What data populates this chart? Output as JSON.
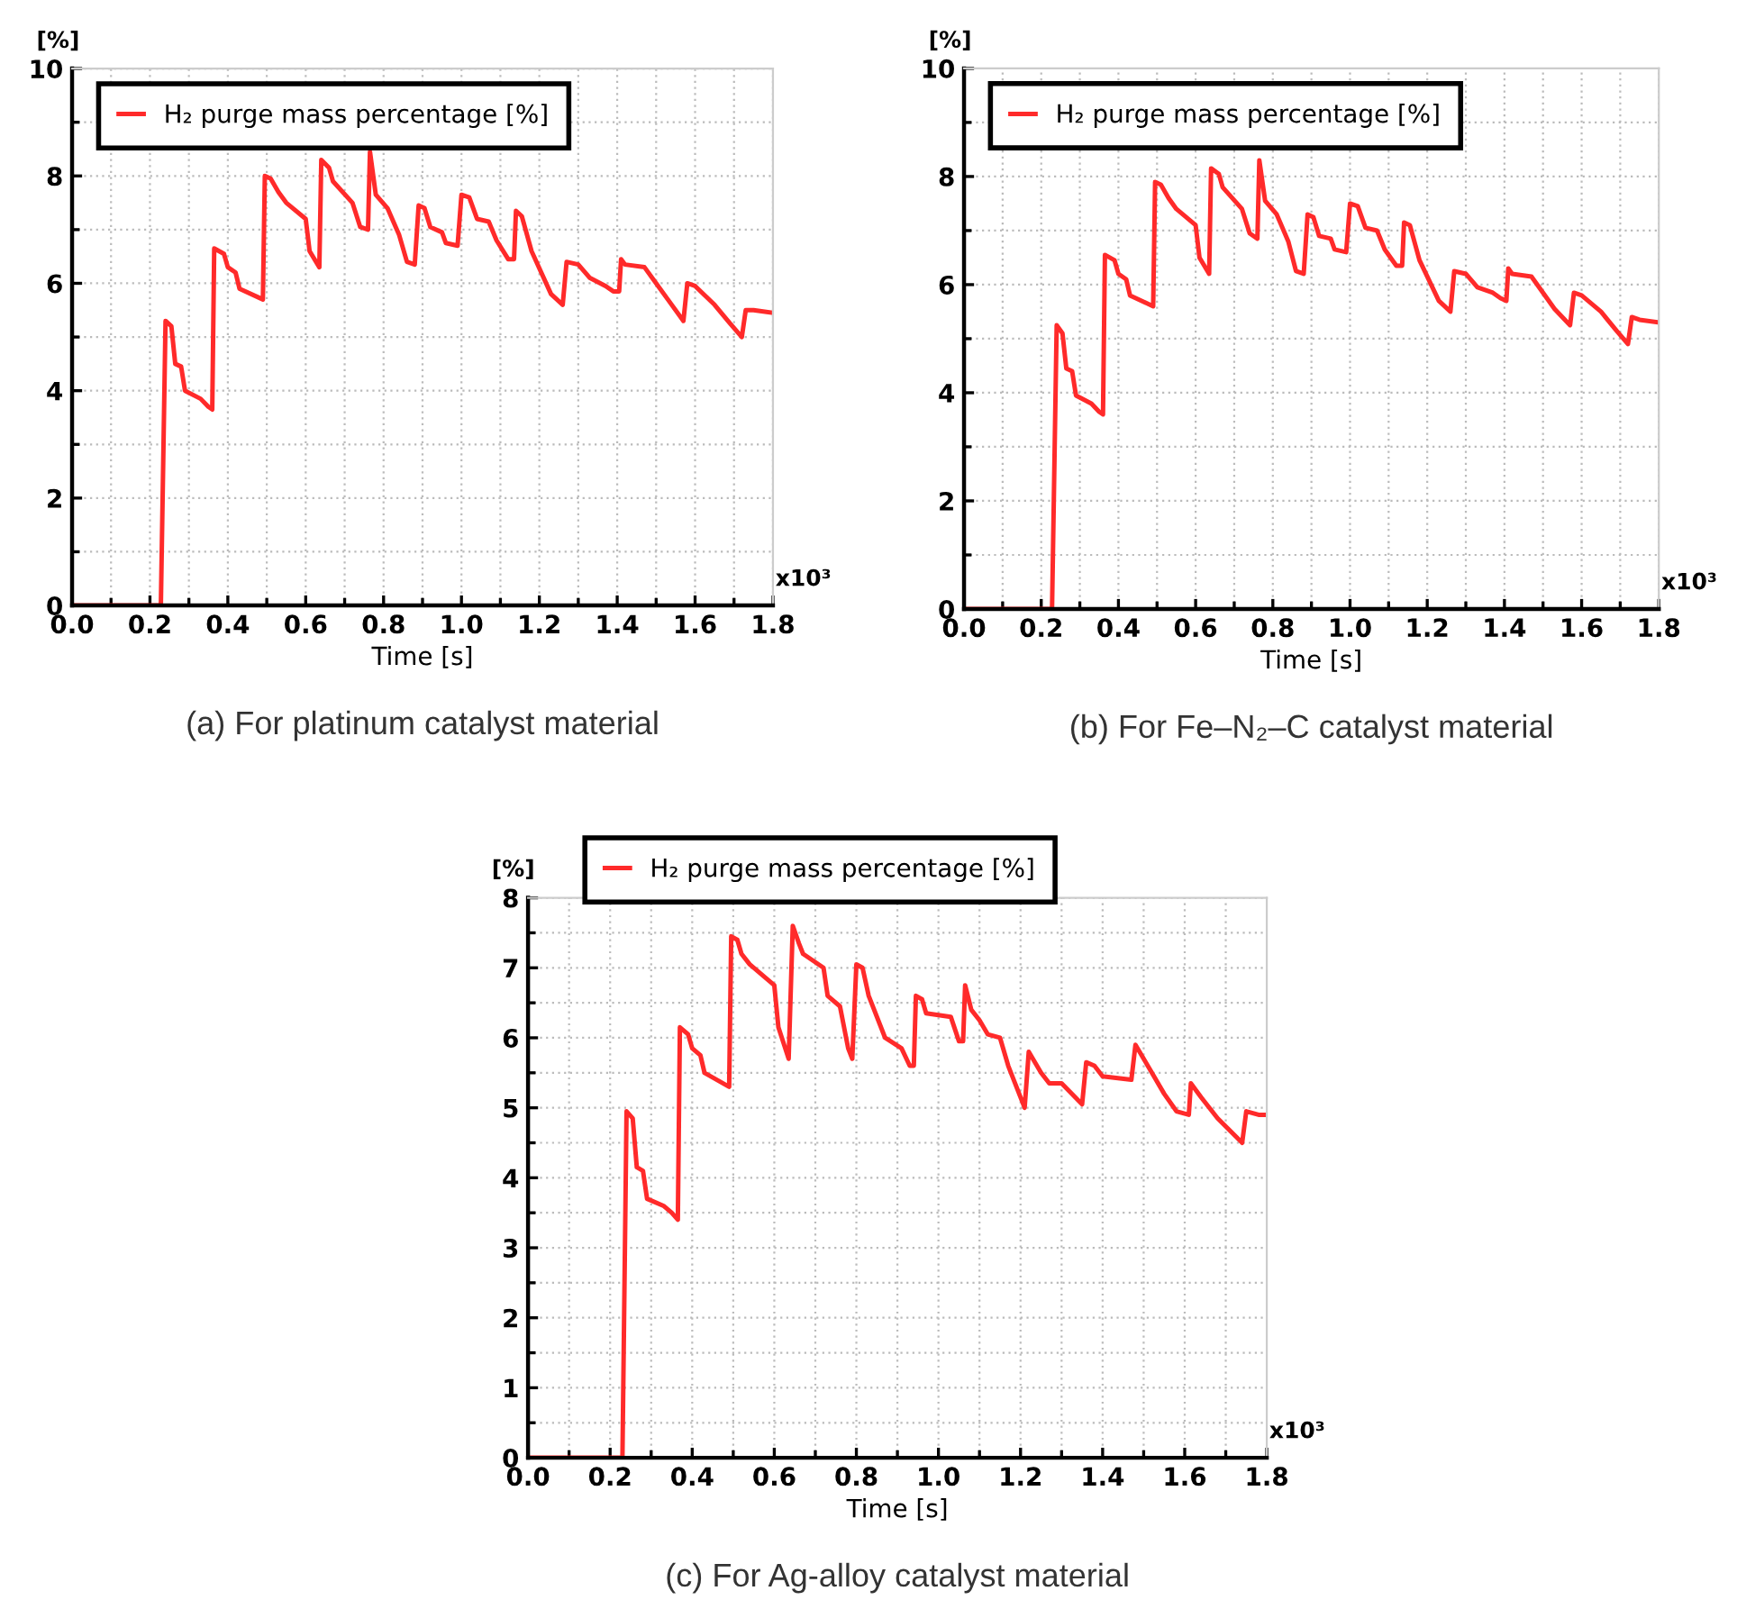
{
  "chart_data": [
    {
      "type": "line",
      "xlabel": "Time [s]",
      "ylabel": "[%]",
      "xlim": [
        0,
        1.8
      ],
      "xticks": [
        {
          "value": 0,
          "label": "0.0"
        },
        {
          "value": 0.2,
          "label": "0.2"
        },
        {
          "value": 0.4,
          "label": "0.4"
        },
        {
          "value": 0.6,
          "label": "0.6"
        },
        {
          "value": 0.8,
          "label": "0.8"
        },
        {
          "value": 1.0,
          "label": "1.0"
        },
        {
          "value": 1.2,
          "label": "1.2"
        },
        {
          "value": 1.4,
          "label": "1.4"
        },
        {
          "value": 1.6,
          "label": "1.6"
        },
        {
          "value": 1.8,
          "label": "1.8"
        }
      ],
      "ylim": [
        0,
        10
      ],
      "yticks": [
        0,
        2,
        4,
        6,
        8,
        10
      ],
      "grid": true,
      "legend": "top left",
      "line_style": "solid",
      "annotations": [
        "x10³",
        "(a) For platinum catalyst material"
      ],
      "x": [
        0,
        0.228,
        0.24,
        0.255,
        0.265,
        0.28,
        0.29,
        0.33,
        0.35,
        0.36,
        0.365,
        0.39,
        0.4,
        0.42,
        0.43,
        0.49,
        0.495,
        0.51,
        0.53,
        0.55,
        0.6,
        0.61,
        0.635,
        0.64,
        0.66,
        0.67,
        0.72,
        0.74,
        0.76,
        0.765,
        0.78,
        0.81,
        0.84,
        0.86,
        0.88,
        0.89,
        0.905,
        0.92,
        0.95,
        0.96,
        0.99,
        1.0,
        1.02,
        1.04,
        1.07,
        1.09,
        1.12,
        1.135,
        1.14,
        1.155,
        1.18,
        1.23,
        1.26,
        1.27,
        1.3,
        1.33,
        1.37,
        1.39,
        1.405,
        1.41,
        1.42,
        1.47,
        1.5,
        1.53,
        1.57,
        1.58,
        1.6,
        1.65,
        1.69,
        1.72,
        1.73,
        1.75,
        1.8
      ],
      "series": [
        {
          "name": "H₂ purge mass percentage [%]",
          "color": "#ff2a2a",
          "values": [
            0,
            0,
            5.3,
            5.2,
            4.5,
            4.45,
            4.0,
            3.85,
            3.7,
            3.65,
            6.65,
            6.55,
            6.3,
            6.2,
            5.9,
            5.7,
            8.0,
            7.95,
            7.7,
            7.5,
            7.2,
            6.6,
            6.3,
            8.3,
            8.15,
            7.9,
            7.5,
            7.05,
            7.0,
            8.45,
            7.65,
            7.4,
            6.9,
            6.4,
            6.35,
            7.45,
            7.4,
            7.05,
            6.95,
            6.75,
            6.7,
            7.65,
            7.6,
            7.2,
            7.15,
            6.8,
            6.45,
            6.45,
            7.35,
            7.25,
            6.6,
            5.8,
            5.6,
            6.4,
            6.35,
            6.1,
            5.95,
            5.85,
            5.85,
            6.45,
            6.35,
            6.3,
            6.0,
            5.7,
            5.3,
            6.0,
            5.95,
            5.6,
            5.25,
            5.0,
            5.5,
            5.5,
            5.45
          ]
        }
      ]
    },
    {
      "type": "line",
      "xlabel": "Time [s]",
      "ylabel": "[%]",
      "xlim": [
        0,
        1.8
      ],
      "xticks": [
        {
          "value": 0,
          "label": "0.0"
        },
        {
          "value": 0.2,
          "label": "0.2"
        },
        {
          "value": 0.4,
          "label": "0.4"
        },
        {
          "value": 0.6,
          "label": "0.6"
        },
        {
          "value": 0.8,
          "label": "0.8"
        },
        {
          "value": 1.0,
          "label": "1.0"
        },
        {
          "value": 1.2,
          "label": "1.2"
        },
        {
          "value": 1.4,
          "label": "1.4"
        },
        {
          "value": 1.6,
          "label": "1.6"
        },
        {
          "value": 1.8,
          "label": "1.8"
        }
      ],
      "ylim": [
        0,
        10
      ],
      "yticks": [
        0,
        2,
        4,
        6,
        8,
        10
      ],
      "grid": true,
      "legend": "top left",
      "line_style": "solid",
      "annotations": [
        "x10³",
        "(b) For Fe–N₂–C catalyst material"
      ],
      "x": [
        0,
        0.228,
        0.24,
        0.255,
        0.265,
        0.28,
        0.29,
        0.33,
        0.35,
        0.36,
        0.365,
        0.39,
        0.4,
        0.42,
        0.43,
        0.49,
        0.495,
        0.51,
        0.53,
        0.55,
        0.6,
        0.61,
        0.635,
        0.64,
        0.66,
        0.67,
        0.72,
        0.74,
        0.76,
        0.765,
        0.78,
        0.81,
        0.84,
        0.86,
        0.88,
        0.89,
        0.905,
        0.92,
        0.95,
        0.96,
        0.99,
        1.0,
        1.02,
        1.04,
        1.07,
        1.09,
        1.12,
        1.135,
        1.14,
        1.155,
        1.18,
        1.23,
        1.26,
        1.27,
        1.3,
        1.33,
        1.37,
        1.39,
        1.405,
        1.41,
        1.42,
        1.47,
        1.5,
        1.53,
        1.57,
        1.58,
        1.6,
        1.65,
        1.69,
        1.72,
        1.73,
        1.75,
        1.8
      ],
      "series": [
        {
          "name": "H₂ purge mass percentage [%]",
          "color": "#ff2a2a",
          "values": [
            0,
            0,
            5.25,
            5.1,
            4.45,
            4.4,
            3.95,
            3.8,
            3.65,
            3.6,
            6.55,
            6.45,
            6.2,
            6.1,
            5.8,
            5.6,
            7.9,
            7.85,
            7.6,
            7.4,
            7.1,
            6.5,
            6.2,
            8.15,
            8.05,
            7.8,
            7.4,
            6.95,
            6.85,
            8.3,
            7.55,
            7.3,
            6.8,
            6.25,
            6.2,
            7.3,
            7.25,
            6.9,
            6.85,
            6.65,
            6.6,
            7.5,
            7.45,
            7.05,
            7.0,
            6.65,
            6.35,
            6.35,
            7.15,
            7.1,
            6.45,
            5.7,
            5.5,
            6.25,
            6.2,
            5.95,
            5.85,
            5.75,
            5.7,
            6.3,
            6.2,
            6.15,
            5.85,
            5.55,
            5.25,
            5.85,
            5.8,
            5.5,
            5.15,
            4.9,
            5.4,
            5.35,
            5.3
          ]
        }
      ]
    },
    {
      "type": "line",
      "xlabel": "Time [s]",
      "ylabel": "[%]",
      "xlim": [
        0,
        1.8
      ],
      "xticks": [
        {
          "value": 0,
          "label": "0.0"
        },
        {
          "value": 0.2,
          "label": "0.2"
        },
        {
          "value": 0.4,
          "label": "0.4"
        },
        {
          "value": 0.6,
          "label": "0.6"
        },
        {
          "value": 0.8,
          "label": "0.8"
        },
        {
          "value": 1.0,
          "label": "1.0"
        },
        {
          "value": 1.2,
          "label": "1.2"
        },
        {
          "value": 1.4,
          "label": "1.4"
        },
        {
          "value": 1.6,
          "label": "1.6"
        },
        {
          "value": 1.8,
          "label": "1.8"
        }
      ],
      "ylim": [
        0,
        8
      ],
      "yticks": [
        0,
        1,
        2,
        3,
        4,
        5,
        6,
        7,
        8
      ],
      "grid": true,
      "legend": "top",
      "line_style": "solid",
      "annotations": [
        "x10³",
        "(c) For Ag-alloy catalyst material"
      ],
      "x": [
        0,
        0.23,
        0.24,
        0.255,
        0.265,
        0.28,
        0.29,
        0.33,
        0.35,
        0.365,
        0.37,
        0.39,
        0.4,
        0.42,
        0.43,
        0.49,
        0.495,
        0.51,
        0.52,
        0.54,
        0.6,
        0.61,
        0.635,
        0.645,
        0.66,
        0.67,
        0.72,
        0.73,
        0.76,
        0.78,
        0.79,
        0.8,
        0.815,
        0.83,
        0.87,
        0.91,
        0.93,
        0.94,
        0.945,
        0.96,
        0.97,
        1.03,
        1.05,
        1.06,
        1.065,
        1.08,
        1.1,
        1.12,
        1.15,
        1.17,
        1.21,
        1.22,
        1.25,
        1.27,
        1.3,
        1.35,
        1.36,
        1.38,
        1.4,
        1.47,
        1.48,
        1.5,
        1.52,
        1.55,
        1.58,
        1.61,
        1.615,
        1.64,
        1.68,
        1.74,
        1.75,
        1.78,
        1.8
      ],
      "series": [
        {
          "name": "H₂ purge mass percentage [%]",
          "color": "#ff2a2a",
          "values": [
            0,
            0,
            4.95,
            4.85,
            4.15,
            4.1,
            3.7,
            3.6,
            3.5,
            3.4,
            6.15,
            6.05,
            5.85,
            5.75,
            5.5,
            5.3,
            7.45,
            7.4,
            7.2,
            7.05,
            6.75,
            6.15,
            5.7,
            7.6,
            7.35,
            7.2,
            7.0,
            6.6,
            6.45,
            5.85,
            5.7,
            7.05,
            7.0,
            6.6,
            6.0,
            5.85,
            5.6,
            5.6,
            6.6,
            6.55,
            6.35,
            6.3,
            5.95,
            5.95,
            6.75,
            6.4,
            6.25,
            6.05,
            6.0,
            5.6,
            5.0,
            5.8,
            5.5,
            5.35,
            5.35,
            5.05,
            5.65,
            5.6,
            5.45,
            5.4,
            5.9,
            5.7,
            5.5,
            5.2,
            4.95,
            4.9,
            5.35,
            5.15,
            4.85,
            4.5,
            4.95,
            4.9,
            4.9
          ]
        }
      ]
    }
  ]
}
